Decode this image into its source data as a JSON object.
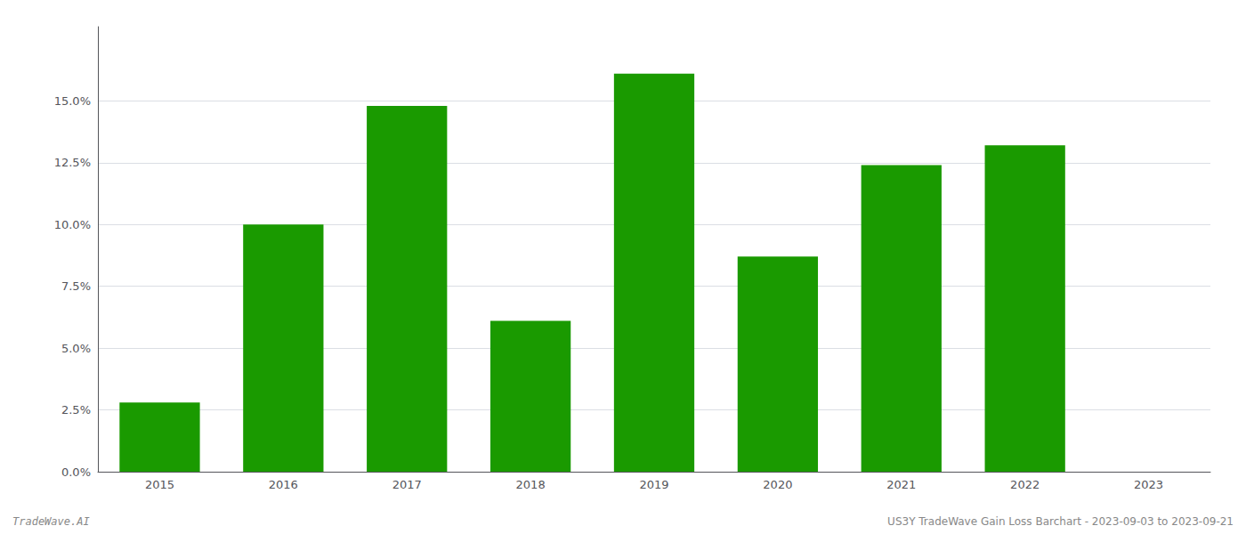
{
  "chart_data": {
    "type": "bar",
    "categories": [
      "2015",
      "2016",
      "2017",
      "2018",
      "2019",
      "2020",
      "2021",
      "2022",
      "2023"
    ],
    "values": [
      0.028,
      0.1,
      0.148,
      0.061,
      0.161,
      0.087,
      0.124,
      0.132,
      null
    ],
    "color": "#1a9a00",
    "ylim": [
      0,
      0.18
    ],
    "yticks": [
      {
        "value": 0.0,
        "label": "0.0%"
      },
      {
        "value": 0.025,
        "label": "2.5%"
      },
      {
        "value": 0.05,
        "label": "5.0%"
      },
      {
        "value": 0.075,
        "label": "7.5%"
      },
      {
        "value": 0.1,
        "label": "10.0%"
      },
      {
        "value": 0.125,
        "label": "12.5%"
      },
      {
        "value": 0.15,
        "label": "15.0%"
      }
    ],
    "grid": true,
    "annotations": [
      "TradeWave.AI",
      "US3Y TradeWave Gain Loss Barchart - 2023-09-03 to 2023-09-21"
    ]
  }
}
